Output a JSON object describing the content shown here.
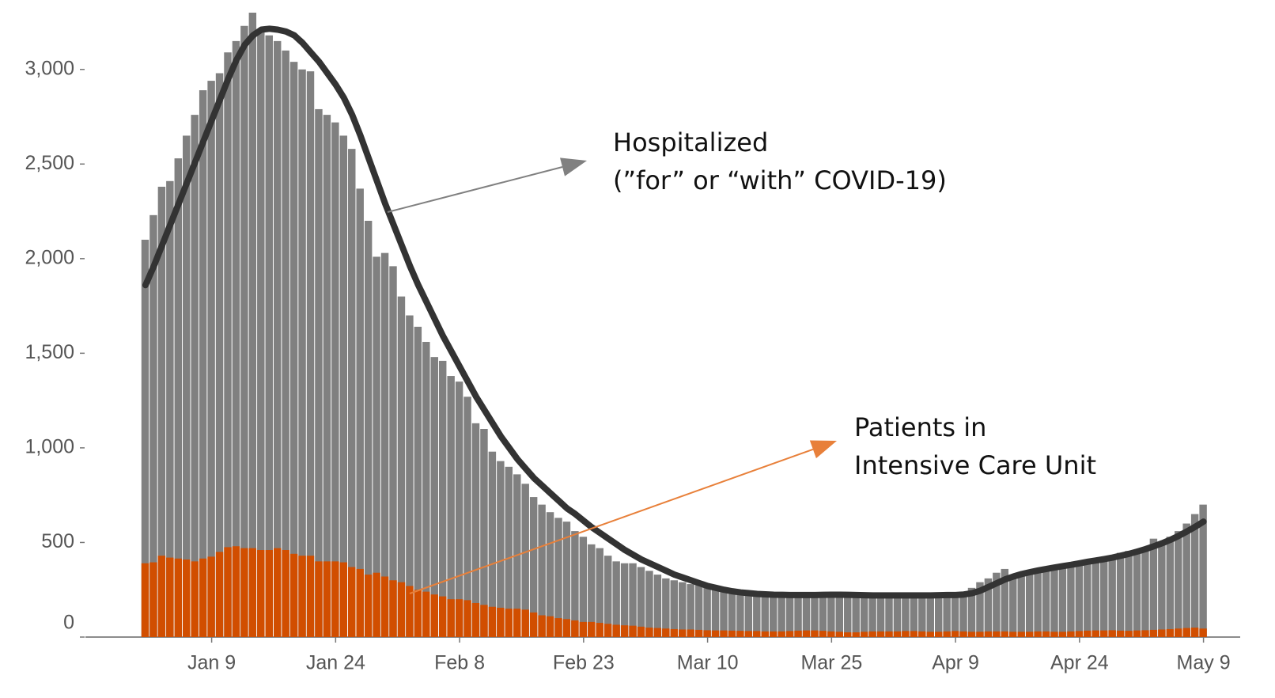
{
  "chart_data": {
    "type": "bar",
    "categories": [
      null,
      null,
      null,
      null,
      null,
      null,
      null,
      null,
      "Jan 9",
      null,
      null,
      null,
      null,
      null,
      null,
      null,
      null,
      null,
      null,
      null,
      null,
      null,
      null,
      "Jan 24",
      null,
      null,
      null,
      null,
      null,
      null,
      null,
      null,
      null,
      null,
      null,
      null,
      null,
      null,
      "Feb 8",
      null,
      null,
      null,
      null,
      null,
      null,
      null,
      null,
      null,
      null,
      null,
      null,
      null,
      null,
      "Feb 23",
      null,
      null,
      null,
      null,
      null,
      null,
      null,
      null,
      null,
      null,
      null,
      null,
      null,
      null,
      "Mar 10",
      null,
      null,
      null,
      null,
      null,
      null,
      null,
      null,
      null,
      null,
      null,
      null,
      null,
      null,
      "Mar 25",
      null,
      null,
      null,
      null,
      null,
      null,
      null,
      null,
      null,
      null,
      null,
      null,
      null,
      null,
      "Apr 9",
      null,
      null,
      null,
      null,
      null,
      null,
      null,
      null,
      null,
      null,
      null,
      null,
      null,
      null,
      "Apr 24",
      null,
      null,
      null,
      null,
      null,
      null,
      null,
      null,
      null,
      null,
      null,
      null,
      null,
      null,
      "May 9"
    ],
    "series": [
      {
        "style": "bar",
        "color": "#808080",
        "values": [
          2100,
          2230,
          2380,
          2410,
          2530,
          2650,
          2760,
          2890,
          2940,
          2980,
          3090,
          3150,
          3230,
          3300,
          3210,
          3180,
          3150,
          3100,
          3040,
          3000,
          2990,
          2790,
          2760,
          2720,
          2650,
          2580,
          2370,
          2200,
          2010,
          2030,
          1960,
          1800,
          1700,
          1640,
          1560,
          1480,
          1460,
          1380,
          1350,
          1270,
          1130,
          1100,
          980,
          930,
          900,
          860,
          810,
          740,
          700,
          660,
          630,
          610,
          560,
          530,
          490,
          470,
          430,
          400,
          390,
          390,
          370,
          350,
          330,
          310,
          300,
          290,
          280,
          275,
          270,
          260,
          250,
          240,
          235,
          228,
          225,
          222,
          220,
          220,
          218,
          220,
          222,
          225,
          228,
          232,
          235,
          232,
          228,
          225,
          220,
          218,
          218,
          220,
          222,
          225,
          222,
          220,
          218,
          222,
          230,
          240,
          260,
          290,
          310,
          340,
          360,
          330,
          340,
          350,
          360,
          370,
          380,
          385,
          395,
          400,
          405,
          410,
          420,
          430,
          445,
          455,
          450,
          470,
          520,
          500,
          530,
          560,
          600,
          650,
          700
        ]
      },
      {
        "style": "bar",
        "color": "#d14e00",
        "values": [
          390,
          395,
          430,
          420,
          415,
          410,
          400,
          415,
          425,
          450,
          475,
          480,
          470,
          470,
          460,
          460,
          470,
          460,
          440,
          430,
          430,
          400,
          400,
          400,
          395,
          370,
          360,
          330,
          340,
          320,
          300,
          290,
          270,
          250,
          240,
          225,
          215,
          200,
          200,
          195,
          180,
          170,
          160,
          155,
          150,
          150,
          145,
          130,
          115,
          110,
          100,
          95,
          88,
          80,
          80,
          75,
          70,
          65,
          62,
          60,
          55,
          50,
          48,
          45,
          42,
          40,
          40,
          38,
          36,
          35,
          35,
          34,
          33,
          32,
          32,
          30,
          30,
          30,
          32,
          34,
          35,
          35,
          33,
          30,
          28,
          25,
          25,
          28,
          30,
          30,
          30,
          30,
          32,
          32,
          30,
          28,
          28,
          30,
          32,
          30,
          28,
          28,
          30,
          30,
          30,
          28,
          28,
          28,
          30,
          30,
          28,
          28,
          30,
          32,
          34,
          35,
          35,
          36,
          34,
          33,
          35,
          36,
          38,
          40,
          42,
          45,
          48,
          50,
          45
        ]
      },
      {
        "style": "line",
        "color": "#333333",
        "values": [
          1860,
          1960,
          2070,
          2180,
          2290,
          2400,
          2510,
          2620,
          2730,
          2840,
          2950,
          3050,
          3130,
          3180,
          3210,
          3215,
          3210,
          3200,
          3180,
          3140,
          3090,
          3040,
          2980,
          2920,
          2850,
          2760,
          2650,
          2530,
          2410,
          2290,
          2180,
          2070,
          1960,
          1860,
          1770,
          1680,
          1590,
          1510,
          1430,
          1350,
          1270,
          1200,
          1130,
          1060,
          1000,
          940,
          890,
          840,
          800,
          760,
          720,
          680,
          650,
          615,
          580,
          550,
          520,
          490,
          460,
          435,
          410,
          390,
          370,
          350,
          330,
          315,
          300,
          285,
          270,
          260,
          250,
          242,
          236,
          232,
          228,
          226,
          224,
          223,
          222,
          222,
          222,
          222,
          223,
          224,
          224,
          223,
          222,
          221,
          220,
          220,
          220,
          220,
          220,
          220,
          220,
          220,
          221,
          222,
          222,
          225,
          232,
          245,
          265,
          285,
          305,
          320,
          333,
          343,
          352,
          360,
          368,
          375,
          382,
          390,
          398,
          405,
          412,
          420,
          430,
          440,
          452,
          465,
          480,
          496,
          514,
          535,
          558,
          583,
          610
        ]
      }
    ],
    "ylim": [
      0,
      3300
    ],
    "yticks": [
      0,
      500,
      {
        "value": 1000,
        "label": "1,000"
      },
      {
        "value": 1500,
        "label": "1,500"
      },
      {
        "value": 2000,
        "label": "2,000"
      },
      {
        "value": 2500,
        "label": "2,500"
      },
      {
        "value": 3000,
        "label": "3,000"
      }
    ],
    "annotations": [
      {
        "lines": [
          "Hospitalized",
          "(”for” or “with” COVID-19)"
        ],
        "color": "#808080"
      },
      {
        "lines": [
          "Patients in",
          "Intensive Care Unit"
        ],
        "color": "#e8803a"
      }
    ]
  }
}
